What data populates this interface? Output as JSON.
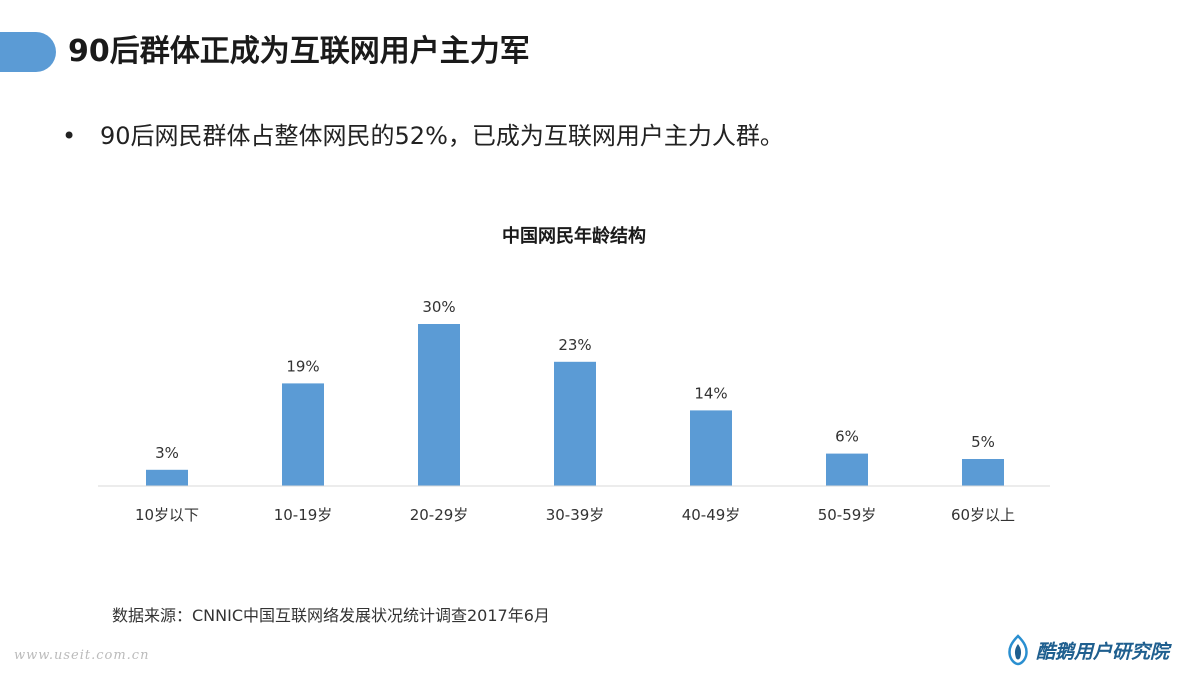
{
  "header": {
    "title": "90后群体正成为互联网用户主力军"
  },
  "bullet": {
    "symbol": "•",
    "text": "90后网民群体占整体网民的52%，已成为互联网用户主力人群。"
  },
  "chart_data": {
    "type": "bar",
    "title": "中国网民年龄结构",
    "categories": [
      "10岁以下",
      "10-19岁",
      "20-29岁",
      "30-39岁",
      "40-49岁",
      "50-59岁",
      "60岁以上"
    ],
    "values": [
      3,
      19,
      30,
      23,
      14,
      6,
      5
    ],
    "data_labels": [
      "3%",
      "19%",
      "30%",
      "23%",
      "14%",
      "6%",
      "5%"
    ],
    "ylim": [
      0,
      35
    ],
    "grid": false,
    "legend": "none",
    "bar_color": "#5b9bd5"
  },
  "footer": {
    "source": "数据来源：CNNIC中国互联网络发展状况统计调查2017年6月",
    "watermark": "www.useit.com.cn",
    "logo_text": "酷鹅用户研究院",
    "logo_icon": "penguin-flame-icon",
    "logo_color": "#1f5f8f"
  }
}
